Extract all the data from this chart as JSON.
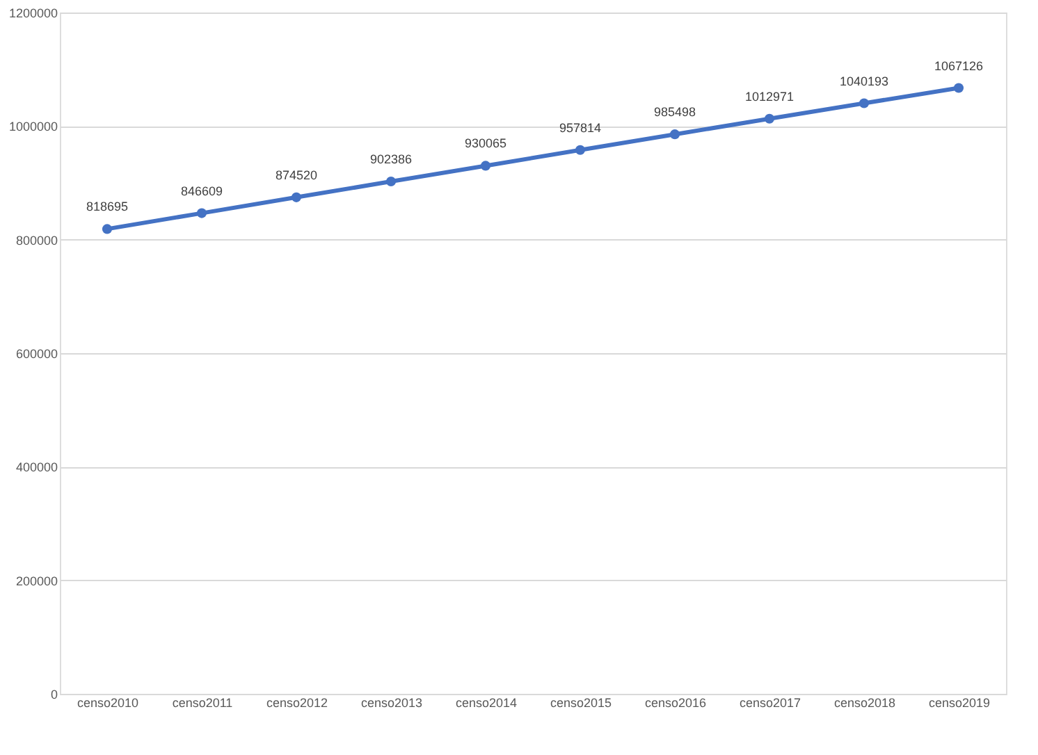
{
  "chart_data": {
    "type": "line",
    "categories": [
      "censo2010",
      "censo2011",
      "censo2012",
      "censo2013",
      "censo2014",
      "censo2015",
      "censo2016",
      "censo2017",
      "censo2018",
      "censo2019"
    ],
    "series": [
      {
        "color": "#4472c4",
        "values": [
          818695,
          846609,
          874520,
          902386,
          930065,
          957814,
          985498,
          1012971,
          1040193,
          1067126
        ]
      }
    ],
    "ylim": [
      0,
      1200000
    ],
    "yticks": [
      0,
      200000,
      400000,
      600000,
      800000,
      1000000,
      1200000
    ],
    "grid": "y",
    "marker": "circle",
    "line_style": "solid",
    "data_labels": true
  }
}
